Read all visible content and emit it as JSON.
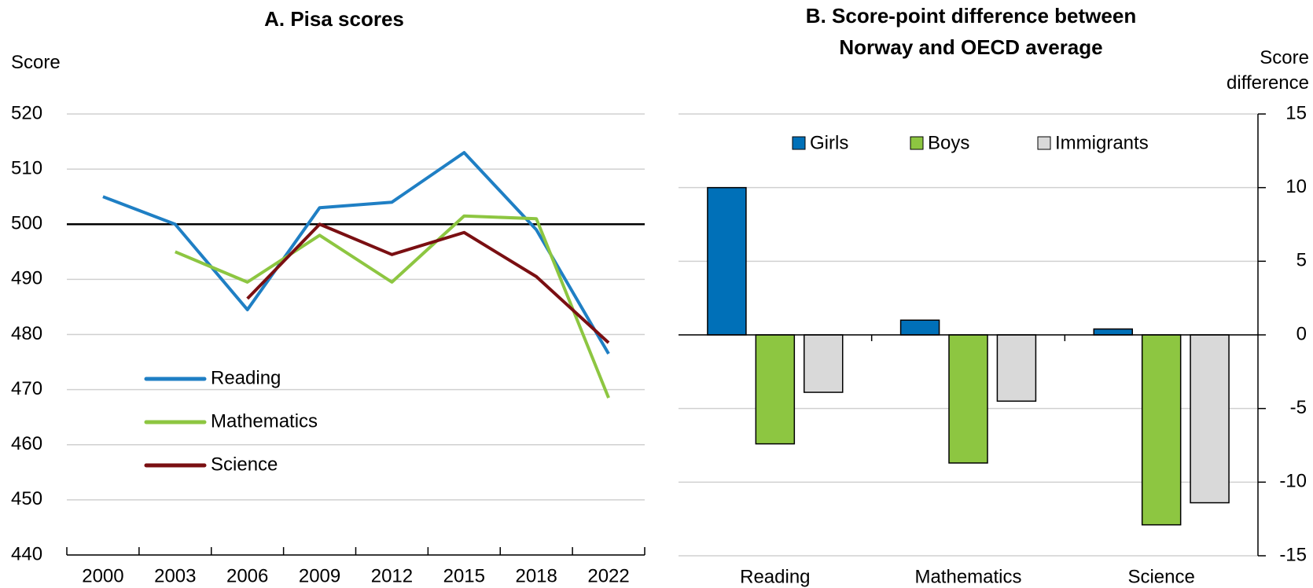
{
  "chart_data": [
    {
      "type": "line",
      "title": "A. Pisa scores",
      "y_label": "Score",
      "categories": [
        "2000",
        "2003",
        "2006",
        "2009",
        "2012",
        "2015",
        "2018",
        "2022"
      ],
      "series": [
        {
          "name": "Reading",
          "color": "#1f7fc4",
          "values": [
            505,
            500,
            484.5,
            503,
            504,
            513,
            499,
            476.5
          ]
        },
        {
          "name": "Mathematics",
          "color": "#8dc641",
          "values": [
            null,
            495,
            489.5,
            498,
            489.5,
            501.5,
            501,
            468.5
          ]
        },
        {
          "name": "Science",
          "color": "#7a0f12",
          "values": [
            null,
            null,
            486.5,
            500,
            494.5,
            498.5,
            490.5,
            478.5
          ]
        }
      ],
      "reference_line": 500,
      "ylim": [
        440,
        520
      ],
      "yticks": [
        440,
        450,
        460,
        470,
        480,
        490,
        500,
        510,
        520
      ],
      "grid": true,
      "legend": "lower left"
    },
    {
      "type": "bar",
      "title": "B. Score-point difference between Norway and OECD average",
      "y_label": "Score difference",
      "categories": [
        "Reading",
        "Mathematics",
        "Science"
      ],
      "series": [
        {
          "name": "Girls",
          "color": "#0070b8",
          "values": [
            10,
            1,
            0.4
          ]
        },
        {
          "name": "Boys",
          "color": "#8dc641",
          "values": [
            -7.4,
            -8.7,
            -12.9
          ]
        },
        {
          "name": "Immigrants",
          "color": "#d9d9d9",
          "values": [
            -3.9,
            -4.5,
            -11.4
          ]
        }
      ],
      "ylim": [
        -15,
        15
      ],
      "yticks": [
        -15,
        -10,
        -5,
        0,
        5,
        10,
        15
      ],
      "grid": true,
      "legend": "upper center",
      "axis_side": "right"
    }
  ]
}
